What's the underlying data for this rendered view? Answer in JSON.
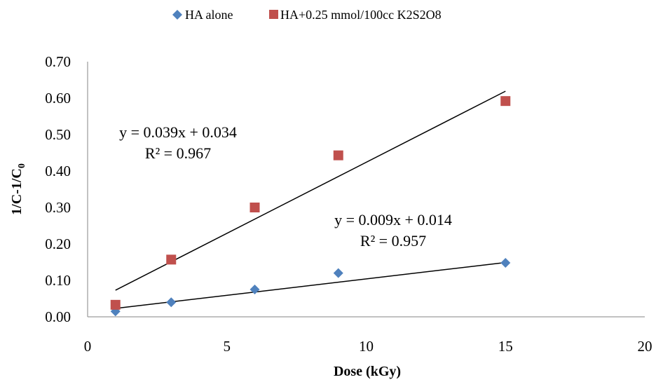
{
  "chart_data": {
    "type": "scatter",
    "title": "",
    "xlabel": "Dose (kGy)",
    "ylabel": {
      "main": "1/C-1/C",
      "subscript": "0"
    },
    "xlim": [
      0,
      20
    ],
    "ylim": [
      0,
      0.7
    ],
    "x_ticks": [
      "0",
      "5",
      "10",
      "15",
      "20"
    ],
    "y_ticks": [
      "0.00",
      "0.10",
      "0.20",
      "0.30",
      "0.40",
      "0.50",
      "0.60",
      "0.70"
    ],
    "grid": false,
    "legend_position": "top",
    "series": [
      {
        "name": "HA alone",
        "marker": "diamond",
        "color": "#4F81BD",
        "x": [
          1,
          3,
          6,
          9,
          15
        ],
        "y": [
          0.015,
          0.04,
          0.075,
          0.12,
          0.148
        ],
        "trendline": {
          "slope": 0.009,
          "intercept": 0.014,
          "equation": "y = 0.009x + 0.014",
          "r2": "R² = 0.957"
        }
      },
      {
        "name": "HA+0.25 mmol/100cc K2S2O8",
        "marker": "square",
        "color": "#C0504D",
        "x": [
          1,
          3,
          6,
          9,
          15
        ],
        "y": [
          0.033,
          0.157,
          0.3,
          0.443,
          0.592
        ],
        "trendline": {
          "slope": 0.039,
          "intercept": 0.034,
          "equation": "y = 0.039x + 0.034",
          "r2": "R² = 0.967"
        }
      }
    ]
  }
}
